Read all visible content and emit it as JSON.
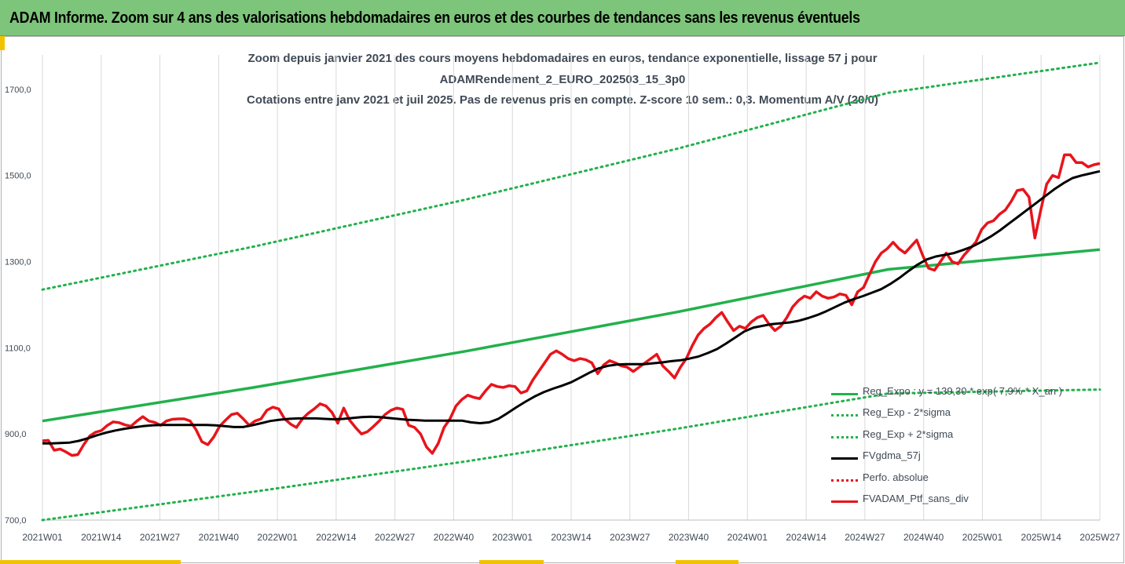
{
  "banner": {
    "text": "ADAM Informe. Zoom sur 4 ans des valorisations hebdomadaires en euros et des courbes de tendances sans les revenus éventuels"
  },
  "chart_data": {
    "type": "line",
    "title_lines": [
      "Zoom depuis janvier 2021 des cours moyens hebdomadaires  en euros, tendance exponentielle, lissage 57 j pour",
      "ADAMRendement_2_EURO_202503_15_3p0",
      "Cotations entre janv 2021 et juil 2025. Pas de revenus pris en compte. Z-score 10 sem.: 0,3. Momentum A/V (20/0)"
    ],
    "xlabel": "",
    "ylabel": "",
    "x_ticks": [
      "2021W01",
      "2021W14",
      "2021W27",
      "2021W40",
      "2022W01",
      "2022W14",
      "2022W27",
      "2022W40",
      "2023W01",
      "2023W14",
      "2023W27",
      "2023W40",
      "2024W01",
      "2024W14",
      "2024W27",
      "2024W40",
      "2025W01",
      "2025W14",
      "2025W27"
    ],
    "y_ticks": [
      "700,0",
      "900,0",
      "1100,0",
      "1300,0",
      "1500,0",
      "1700,0"
    ],
    "ylim": [
      700,
      1780
    ],
    "grid": "vertical",
    "legend_position": "bottom-right",
    "series": [
      {
        "name": "Reg_Expo : y = 139,30 * exp( 7,9% *  X_an )",
        "color": "#22b14c",
        "style": "solid",
        "values": [
          930,
          1008,
          1092,
          1183,
          1282,
          1328
        ]
      },
      {
        "name": "Reg_Exp - 2*sigma",
        "color": "#22b14c",
        "style": "dotted",
        "values": [
          700,
          766,
          836,
          912,
          994,
          1003
        ]
      },
      {
        "name": "Reg_Exp + 2*sigma",
        "color": "#22b14c",
        "style": "dotted",
        "values": [
          1235,
          1335,
          1444,
          1562,
          1692,
          1762
        ]
      },
      {
        "name": "FVgdma_57j",
        "color": "#000000",
        "style": "solid",
        "values": [
          878,
          878,
          879,
          880,
          884,
          890,
          897,
          903,
          908,
          912,
          915,
          918,
          920,
          921,
          921,
          921,
          921,
          921,
          921,
          920,
          918,
          916,
          916,
          920,
          925,
          930,
          933,
          935,
          936,
          936,
          936,
          935,
          934,
          935,
          937,
          939,
          940,
          939,
          937,
          935,
          933,
          932,
          931,
          931,
          931,
          931,
          931,
          927,
          925,
          927,
          935,
          948,
          962,
          975,
          987,
          997,
          1005,
          1012,
          1020,
          1031,
          1042,
          1052,
          1058,
          1061,
          1062,
          1062,
          1062,
          1064,
          1066,
          1069,
          1071,
          1075,
          1080,
          1088,
          1097,
          1110,
          1124,
          1138,
          1147,
          1151,
          1155,
          1157,
          1159,
          1163,
          1169,
          1176,
          1185,
          1195,
          1205,
          1213,
          1220,
          1228,
          1236,
          1248,
          1262,
          1278,
          1293,
          1305,
          1312,
          1316,
          1320,
          1327,
          1335,
          1346,
          1358,
          1372,
          1388,
          1404,
          1420,
          1436,
          1452,
          1468,
          1482,
          1494,
          1500,
          1505,
          1510
        ]
      },
      {
        "name": "Perfo. absolue",
        "color": "#e8141b",
        "style": "dotted",
        "values": []
      },
      {
        "name": "FVADAM_Ptf_sans_div",
        "color": "#e8141b",
        "style": "solid",
        "values": [
          884,
          885,
          862,
          865,
          858,
          850,
          852,
          875,
          895,
          904,
          908,
          920,
          928,
          926,
          921,
          918,
          930,
          940,
          930,
          927,
          920,
          930,
          934,
          935,
          935,
          930,
          910,
          882,
          875,
          893,
          918,
          932,
          945,
          948,
          935,
          920,
          930,
          935,
          955,
          962,
          958,
          935,
          923,
          915,
          935,
          948,
          958,
          970,
          965,
          950,
          925,
          960,
          932,
          915,
          900,
          905,
          917,
          930,
          945,
          955,
          960,
          957,
          920,
          915,
          900,
          870,
          855,
          878,
          915,
          935,
          965,
          980,
          990,
          985,
          982,
          1000,
          1015,
          1010,
          1008,
          1012,
          1010,
          995,
          1000,
          1025,
          1045,
          1065,
          1085,
          1093,
          1085,
          1075,
          1070,
          1075,
          1072,
          1065,
          1040,
          1060,
          1070,
          1065,
          1058,
          1055,
          1045,
          1055,
          1065,
          1075,
          1085,
          1058,
          1045,
          1030,
          1055,
          1075,
          1105,
          1130,
          1145,
          1155,
          1170,
          1182,
          1160,
          1140,
          1150,
          1145,
          1160,
          1170,
          1175,
          1155,
          1140,
          1150,
          1170,
          1195,
          1210,
          1220,
          1215,
          1230,
          1220,
          1215,
          1218,
          1225,
          1222,
          1200,
          1230,
          1240,
          1270,
          1300,
          1320,
          1330,
          1345,
          1330,
          1320,
          1335,
          1350,
          1315,
          1285,
          1280,
          1300,
          1320,
          1300,
          1295,
          1315,
          1330,
          1345,
          1375,
          1390,
          1395,
          1410,
          1420,
          1440,
          1465,
          1468,
          1450,
          1355,
          1420,
          1480,
          1500,
          1495,
          1548,
          1548,
          1530,
          1530,
          1520,
          1525,
          1528
        ]
      }
    ]
  }
}
